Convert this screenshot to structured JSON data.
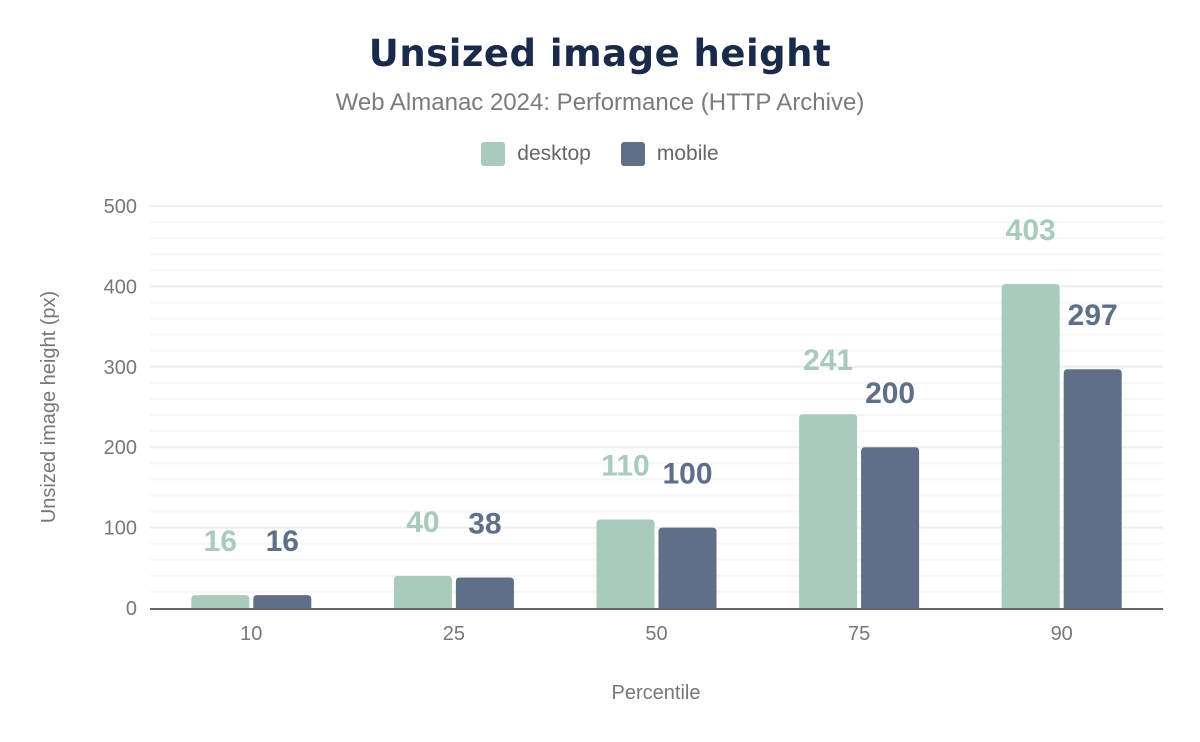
{
  "chart_data": {
    "type": "bar",
    "title": "Unsized image height",
    "subtitle": "Web Almanac 2024: Performance (HTTP Archive)",
    "xlabel": "Percentile",
    "ylabel": "Unsized image height (px)",
    "categories": [
      "10",
      "25",
      "50",
      "75",
      "90"
    ],
    "series": [
      {
        "name": "desktop",
        "color": "#a8cbbb",
        "values": [
          16,
          40,
          110,
          241,
          403
        ]
      },
      {
        "name": "mobile",
        "color": "#5f6f88",
        "values": [
          16,
          38,
          100,
          200,
          297
        ]
      }
    ],
    "ylim": [
      0,
      500
    ],
    "yticks": [
      0,
      100,
      200,
      300,
      400,
      500
    ],
    "grid": true,
    "legend_position": "top"
  }
}
